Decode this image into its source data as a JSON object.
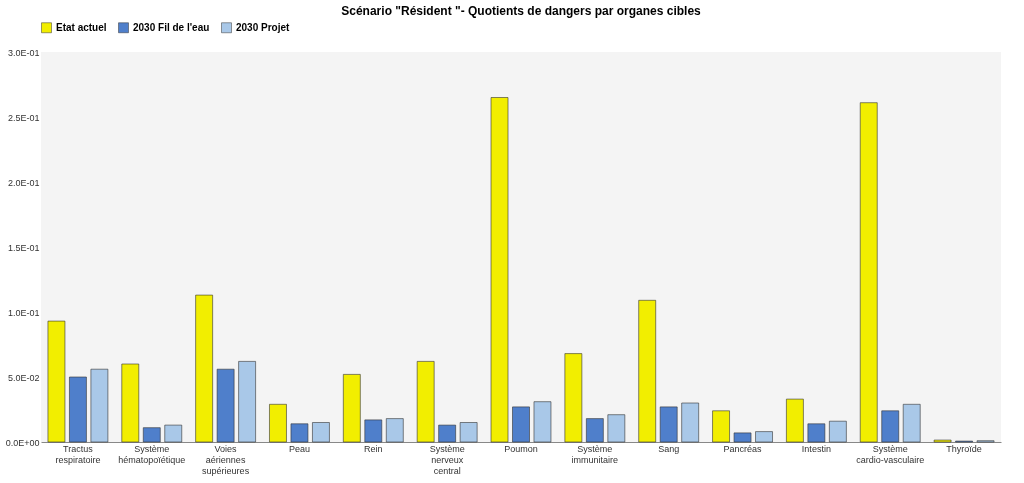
{
  "chart_data": {
    "type": "bar",
    "title": "Scénario \"Résident \"- Quotients de dangers par organes cibles",
    "categories": [
      "Tractus respiratoire",
      "Système hématopoïétique",
      "Voies aériennes supérieures",
      "Peau",
      "Rein",
      "Système nerveux central",
      "Poumon",
      "Système immunitaire",
      "Sang",
      "Pancréas",
      "Intestin",
      "Système cardio-vasculaire",
      "Thyroïde"
    ],
    "series": [
      {
        "name": "Etat actuel",
        "color": "#f2ee00",
        "values": [
          0.093,
          0.06,
          0.113,
          0.029,
          0.052,
          0.062,
          0.265,
          0.068,
          0.109,
          0.024,
          0.033,
          0.261,
          0.0015
        ]
      },
      {
        "name": "2030 Fil de l'eau",
        "color": "#4f7fcb",
        "values": [
          0.05,
          0.011,
          0.056,
          0.014,
          0.017,
          0.013,
          0.027,
          0.018,
          0.027,
          0.007,
          0.014,
          0.024,
          0.0007
        ]
      },
      {
        "name": "2030 Projet",
        "color": "#a9c8e8",
        "values": [
          0.056,
          0.013,
          0.062,
          0.015,
          0.018,
          0.015,
          0.031,
          0.021,
          0.03,
          0.008,
          0.016,
          0.029,
          0.001
        ]
      }
    ],
    "ylim": [
      0,
      0.3
    ],
    "yticks": [
      {
        "value": 0,
        "label": "0.0E+00"
      },
      {
        "value": 0.05,
        "label": "5.0E-02"
      },
      {
        "value": 0.1,
        "label": "1.0E-01"
      },
      {
        "value": 0.15,
        "label": "1.5E-01"
      },
      {
        "value": 0.2,
        "label": "2.0E-01"
      },
      {
        "value": 0.25,
        "label": "2.5E-01"
      },
      {
        "value": 0.3,
        "label": "3.0E-01"
      }
    ],
    "grid": false,
    "legend": "top"
  }
}
